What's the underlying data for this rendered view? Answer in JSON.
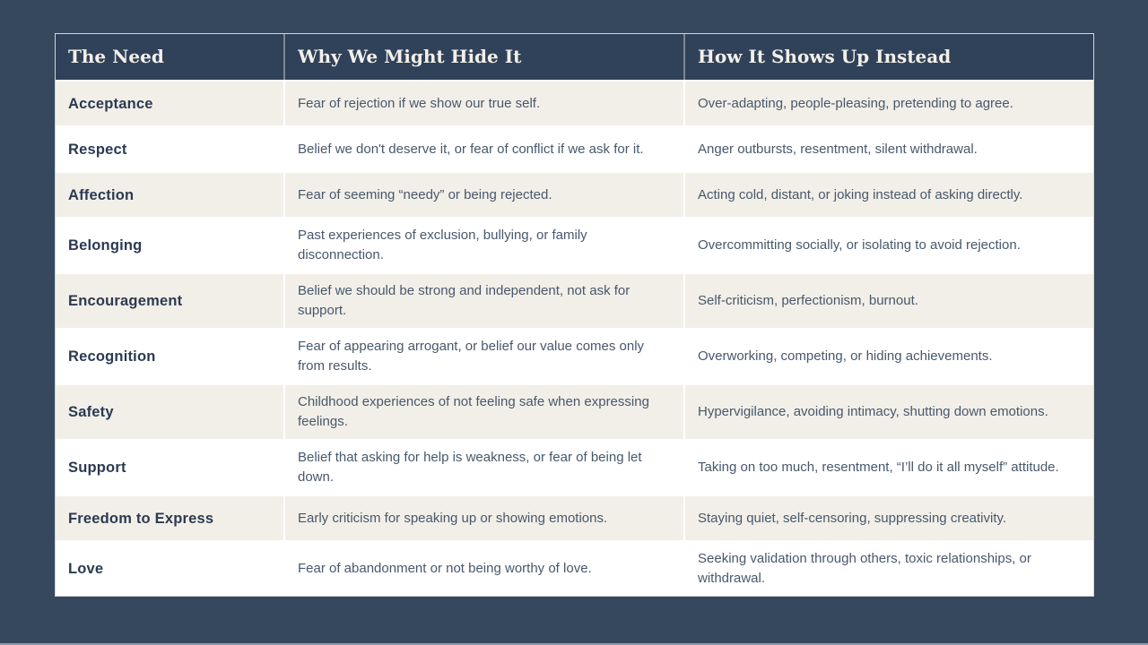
{
  "theme": {
    "page-bg": "#35485E",
    "header-bg": "#30425A",
    "header-text": "#F3F0E9",
    "row-cream": "#F2EFE8",
    "row-white": "#FFFFFF",
    "need-text": "#2B3A52",
    "body-text": "#48586C"
  },
  "table": {
    "columns": [
      {
        "key": "need",
        "label": "The Need"
      },
      {
        "key": "why",
        "label": "Why We Might Hide It"
      },
      {
        "key": "how",
        "label": "How It Shows Up Instead"
      }
    ],
    "rows": [
      {
        "need": "Acceptance",
        "why": "Fear of rejection if we show our true self.",
        "how": "Over-adapting, people-pleasing, pretending to agree."
      },
      {
        "need": "Respect",
        "why": "Belief we don't deserve it, or fear of conflict if we ask for it.",
        "how": "Anger outbursts, resentment, silent withdrawal."
      },
      {
        "need": "Affection",
        "why": "Fear of seeming “needy” or being rejected.",
        "how": "Acting cold, distant, or joking instead of asking directly."
      },
      {
        "need": "Belonging",
        "why": "Past experiences of exclusion, bullying, or family disconnection.",
        "how": "Overcommitting socially, or isolating to avoid rejection."
      },
      {
        "need": "Encouragement",
        "why": "Belief we should be strong and independent, not ask for support.",
        "how": "Self-criticism, perfectionism, burnout."
      },
      {
        "need": "Recognition",
        "why": "Fear of appearing arrogant, or belief our value comes only from results.",
        "how": "Overworking, competing, or hiding achievements."
      },
      {
        "need": "Safety",
        "why": "Childhood experiences of not feeling safe when expressing feelings.",
        "how": "Hypervigilance, avoiding intimacy, shutting down emotions."
      },
      {
        "need": "Support",
        "why": "Belief that asking for help is weakness, or fear of being let down.",
        "how": "Taking on too much, resentment, “I’ll do it all myself” attitude."
      },
      {
        "need": "Freedom to Express",
        "why": "Early criticism for speaking up or showing emotions.",
        "how": "Staying quiet, self-censoring, suppressing creativity."
      },
      {
        "need": "Love",
        "why": "Fear of abandonment or not being worthy of love.",
        "how": "Seeking validation through others, toxic relationships, or withdrawal."
      }
    ]
  }
}
